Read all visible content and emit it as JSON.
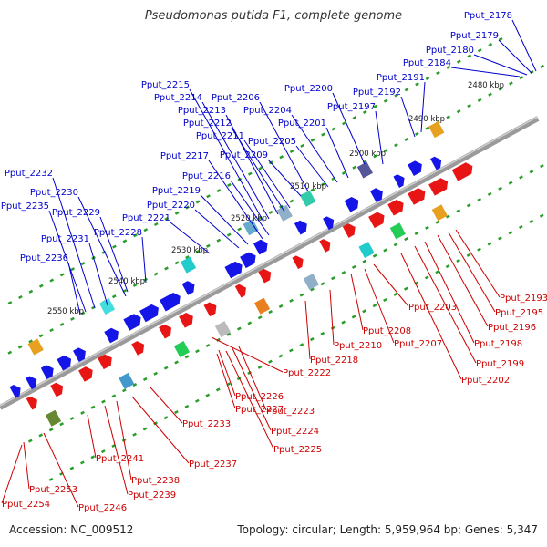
{
  "title": "Pseudomonas putida F1, complete genome",
  "footer": {
    "accession": "Accession: NC_009512",
    "summary": "Topology: circular; Length: 5,959,964 bp; Genes: 5,347"
  },
  "colors": {
    "backbone": "#9a9a9a",
    "plus_strand": "#1515e8",
    "minus_strand": "#e81515",
    "plus_label": "#0000cc",
    "minus_label": "#cc0000",
    "tick": "#2a9d2a",
    "ruler_text": "#222222"
  },
  "ruler": [
    {
      "label": "2480 kbp",
      "pos": 2480
    },
    {
      "label": "2490 kbp",
      "pos": 2490
    },
    {
      "label": "2500 kbp",
      "pos": 2500
    },
    {
      "label": "2510 kbp",
      "pos": 2510
    },
    {
      "label": "2520 kbp",
      "pos": 2520
    },
    {
      "label": "2530 kbp",
      "pos": 2530
    },
    {
      "label": "2540 kbp",
      "pos": 2540
    },
    {
      "label": "2550 kbp",
      "pos": 2550
    }
  ],
  "plus_labels": [
    "Pput_2178",
    "Pput_2179",
    "Pput_2180",
    "Pput_2184",
    "Pput_2191",
    "Pput_2192",
    "Pput_2197",
    "Pput_2200",
    "Pput_2201",
    "Pput_2204",
    "Pput_2205",
    "Pput_2206",
    "Pput_2209",
    "Pput_2211",
    "Pput_2212",
    "Pput_2213",
    "Pput_2214",
    "Pput_2215",
    "Pput_2216",
    "Pput_2217",
    "Pput_2219",
    "Pput_2220",
    "Pput_2221",
    "Pput_2228",
    "Pput_2229",
    "Pput_2230",
    "Pput_2231",
    "Pput_2232",
    "Pput_2235",
    "Pput_2236"
  ],
  "minus_labels": [
    "Pput_2193",
    "Pput_2195",
    "Pput_2196",
    "Pput_2198",
    "Pput_2199",
    "Pput_2202",
    "Pput_2203",
    "Pput_2207",
    "Pput_2208",
    "Pput_2210",
    "Pput_2218",
    "Pput_2222",
    "Pput_2223",
    "Pput_2224",
    "Pput_2225",
    "Pput_2226",
    "Pput_2227",
    "Pput_2233",
    "Pput_2237",
    "Pput_2238",
    "Pput_2239",
    "Pput_2241",
    "Pput_2246",
    "Pput_2253",
    "Pput_2254"
  ]
}
